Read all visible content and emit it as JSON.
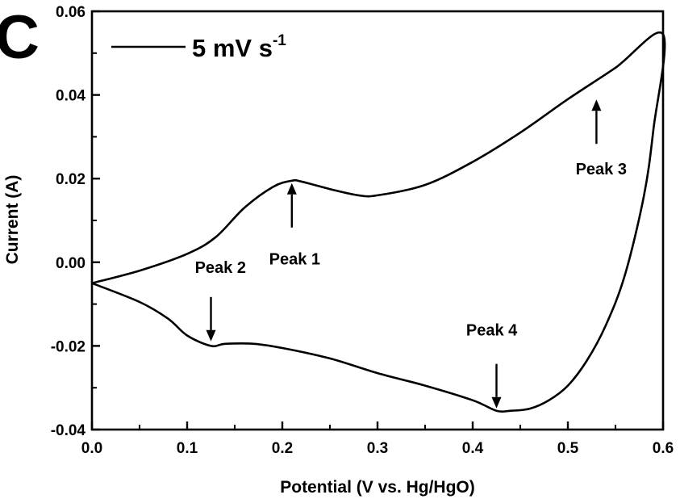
{
  "panel_label": "C",
  "chart_data": {
    "type": "line",
    "title": "",
    "xlabel": "Potential (V vs. Hg/HgO)",
    "ylabel": "Current (A)",
    "xlim": [
      0.0,
      0.6
    ],
    "ylim": [
      -0.04,
      0.06
    ],
    "x_ticks": [
      "0.0",
      "0.1",
      "0.2",
      "0.3",
      "0.4",
      "0.5",
      "0.6"
    ],
    "y_ticks": [
      "-0.04",
      "-0.02",
      "0.00",
      "0.02",
      "0.04",
      "0.06"
    ],
    "grid": false,
    "legend": {
      "placement": "top-left",
      "text": "5 mV s",
      "superscript": "-1"
    },
    "series": [
      {
        "name": "5 mV s-1",
        "color": "#000000",
        "x": [
          0.0,
          0.05,
          0.1,
          0.13,
          0.16,
          0.19,
          0.21,
          0.22,
          0.25,
          0.28,
          0.3,
          0.35,
          0.4,
          0.45,
          0.5,
          0.55,
          0.6,
          0.59,
          0.58,
          0.56,
          0.54,
          0.52,
          0.5,
          0.48,
          0.46,
          0.44,
          0.425,
          0.4,
          0.35,
          0.3,
          0.25,
          0.2,
          0.17,
          0.14,
          0.125,
          0.1,
          0.08,
          0.05,
          0.0
        ],
        "y": [
          -0.005,
          -0.002,
          0.002,
          0.006,
          0.013,
          0.018,
          0.0195,
          0.0193,
          0.0175,
          0.016,
          0.016,
          0.0185,
          0.024,
          0.031,
          0.039,
          0.0465,
          0.0545,
          0.032,
          0.016,
          -0.003,
          -0.015,
          -0.0235,
          -0.0295,
          -0.033,
          -0.035,
          -0.0355,
          -0.0355,
          -0.033,
          -0.0295,
          -0.0265,
          -0.023,
          -0.0205,
          -0.0195,
          -0.0195,
          -0.02,
          -0.0175,
          -0.0135,
          -0.0095,
          -0.005
        ]
      }
    ],
    "annotations": [
      {
        "text": "Peak 1",
        "x": 0.21,
        "y": 0.0195,
        "direction": "up",
        "label_x": 0.213,
        "label_y": -0.0005
      },
      {
        "text": "Peak 2",
        "x": 0.125,
        "y": -0.0195,
        "direction": "down",
        "label_x": 0.135,
        "label_y": -0.0025
      },
      {
        "text": "Peak 3",
        "x": 0.53,
        "y": 0.0395,
        "direction": "up",
        "label_x": 0.535,
        "label_y": 0.021
      },
      {
        "text": "Peak 4",
        "x": 0.425,
        "y": -0.0355,
        "direction": "down",
        "label_x": 0.42,
        "label_y": -0.0175
      }
    ]
  }
}
